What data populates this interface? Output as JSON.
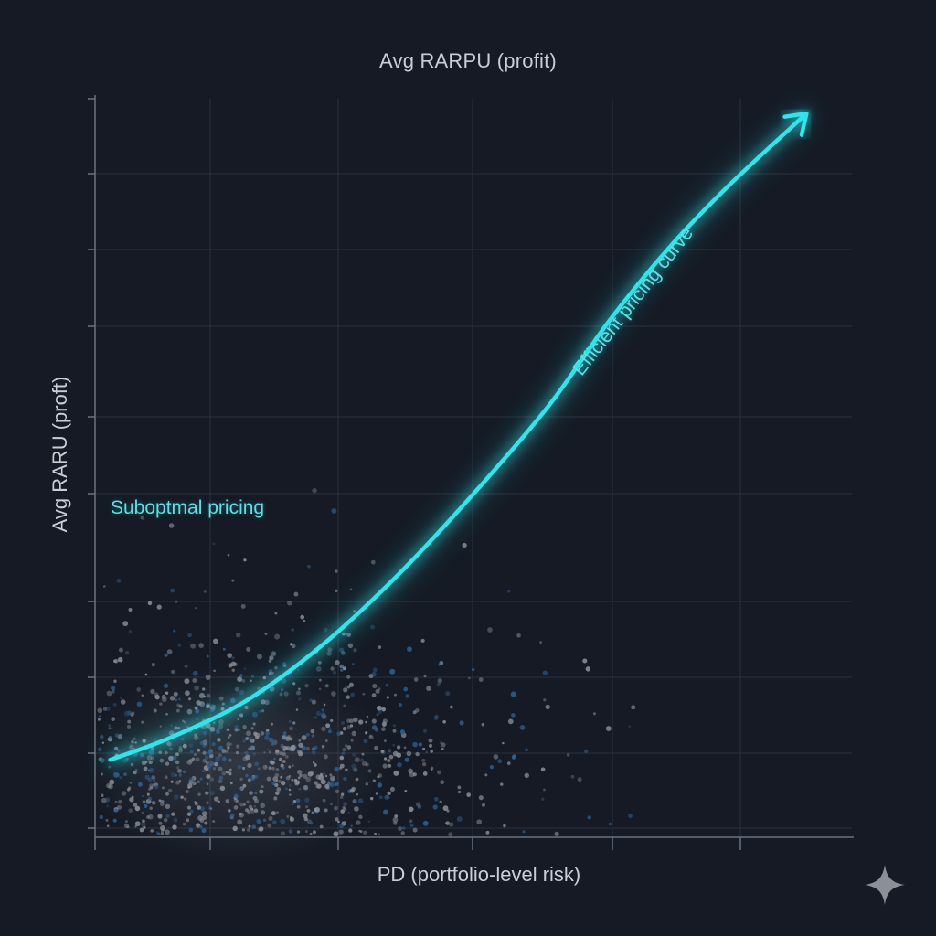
{
  "chart_data": {
    "type": "scatter",
    "title": "Avg RARPU (profit)",
    "xlabel": "PD (portfolio-level risk)",
    "ylabel": "Avg RARU (proft)",
    "xlim": [
      0,
      100
    ],
    "ylim": [
      0,
      100
    ],
    "grid": true,
    "tick_labels_shown": false,
    "series": [
      {
        "kind": "curve",
        "color": "#2ee6ec",
        "points": [
          {
            "x": 2,
            "y": 10.5
          },
          {
            "x": 10,
            "y": 13.5
          },
          {
            "x": 20,
            "y": 18.5
          },
          {
            "x": 30,
            "y": 26
          },
          {
            "x": 40,
            "y": 35.5
          },
          {
            "x": 50,
            "y": 46.5
          },
          {
            "x": 60,
            "y": 58.5
          },
          {
            "x": 68,
            "y": 70
          },
          {
            "x": 76,
            "y": 80
          },
          {
            "x": 84,
            "y": 88.5
          },
          {
            "x": 94,
            "y": 98
          }
        ]
      },
      {
        "kind": "scatter-cloud",
        "colors": [
          "#8b9099",
          "#2f5f8f"
        ],
        "approx_points": 1300,
        "center": {
          "x": 19,
          "y": 10
        },
        "spread": {
          "x": 15,
          "y": 8
        }
      }
    ],
    "annotations": [
      {
        "text": "Suboptmal pricing",
        "color": "#56e2e8"
      },
      {
        "text": "Efficient pricing curve",
        "color": "#56e2e8"
      }
    ]
  },
  "colors": {
    "background": "#151a24",
    "grid": "#2a313e",
    "axis": "#6b7280",
    "text": "#c9ced6",
    "accent": "#2ee6ec"
  },
  "icons": {
    "corner_logo": "sparkle-icon"
  }
}
